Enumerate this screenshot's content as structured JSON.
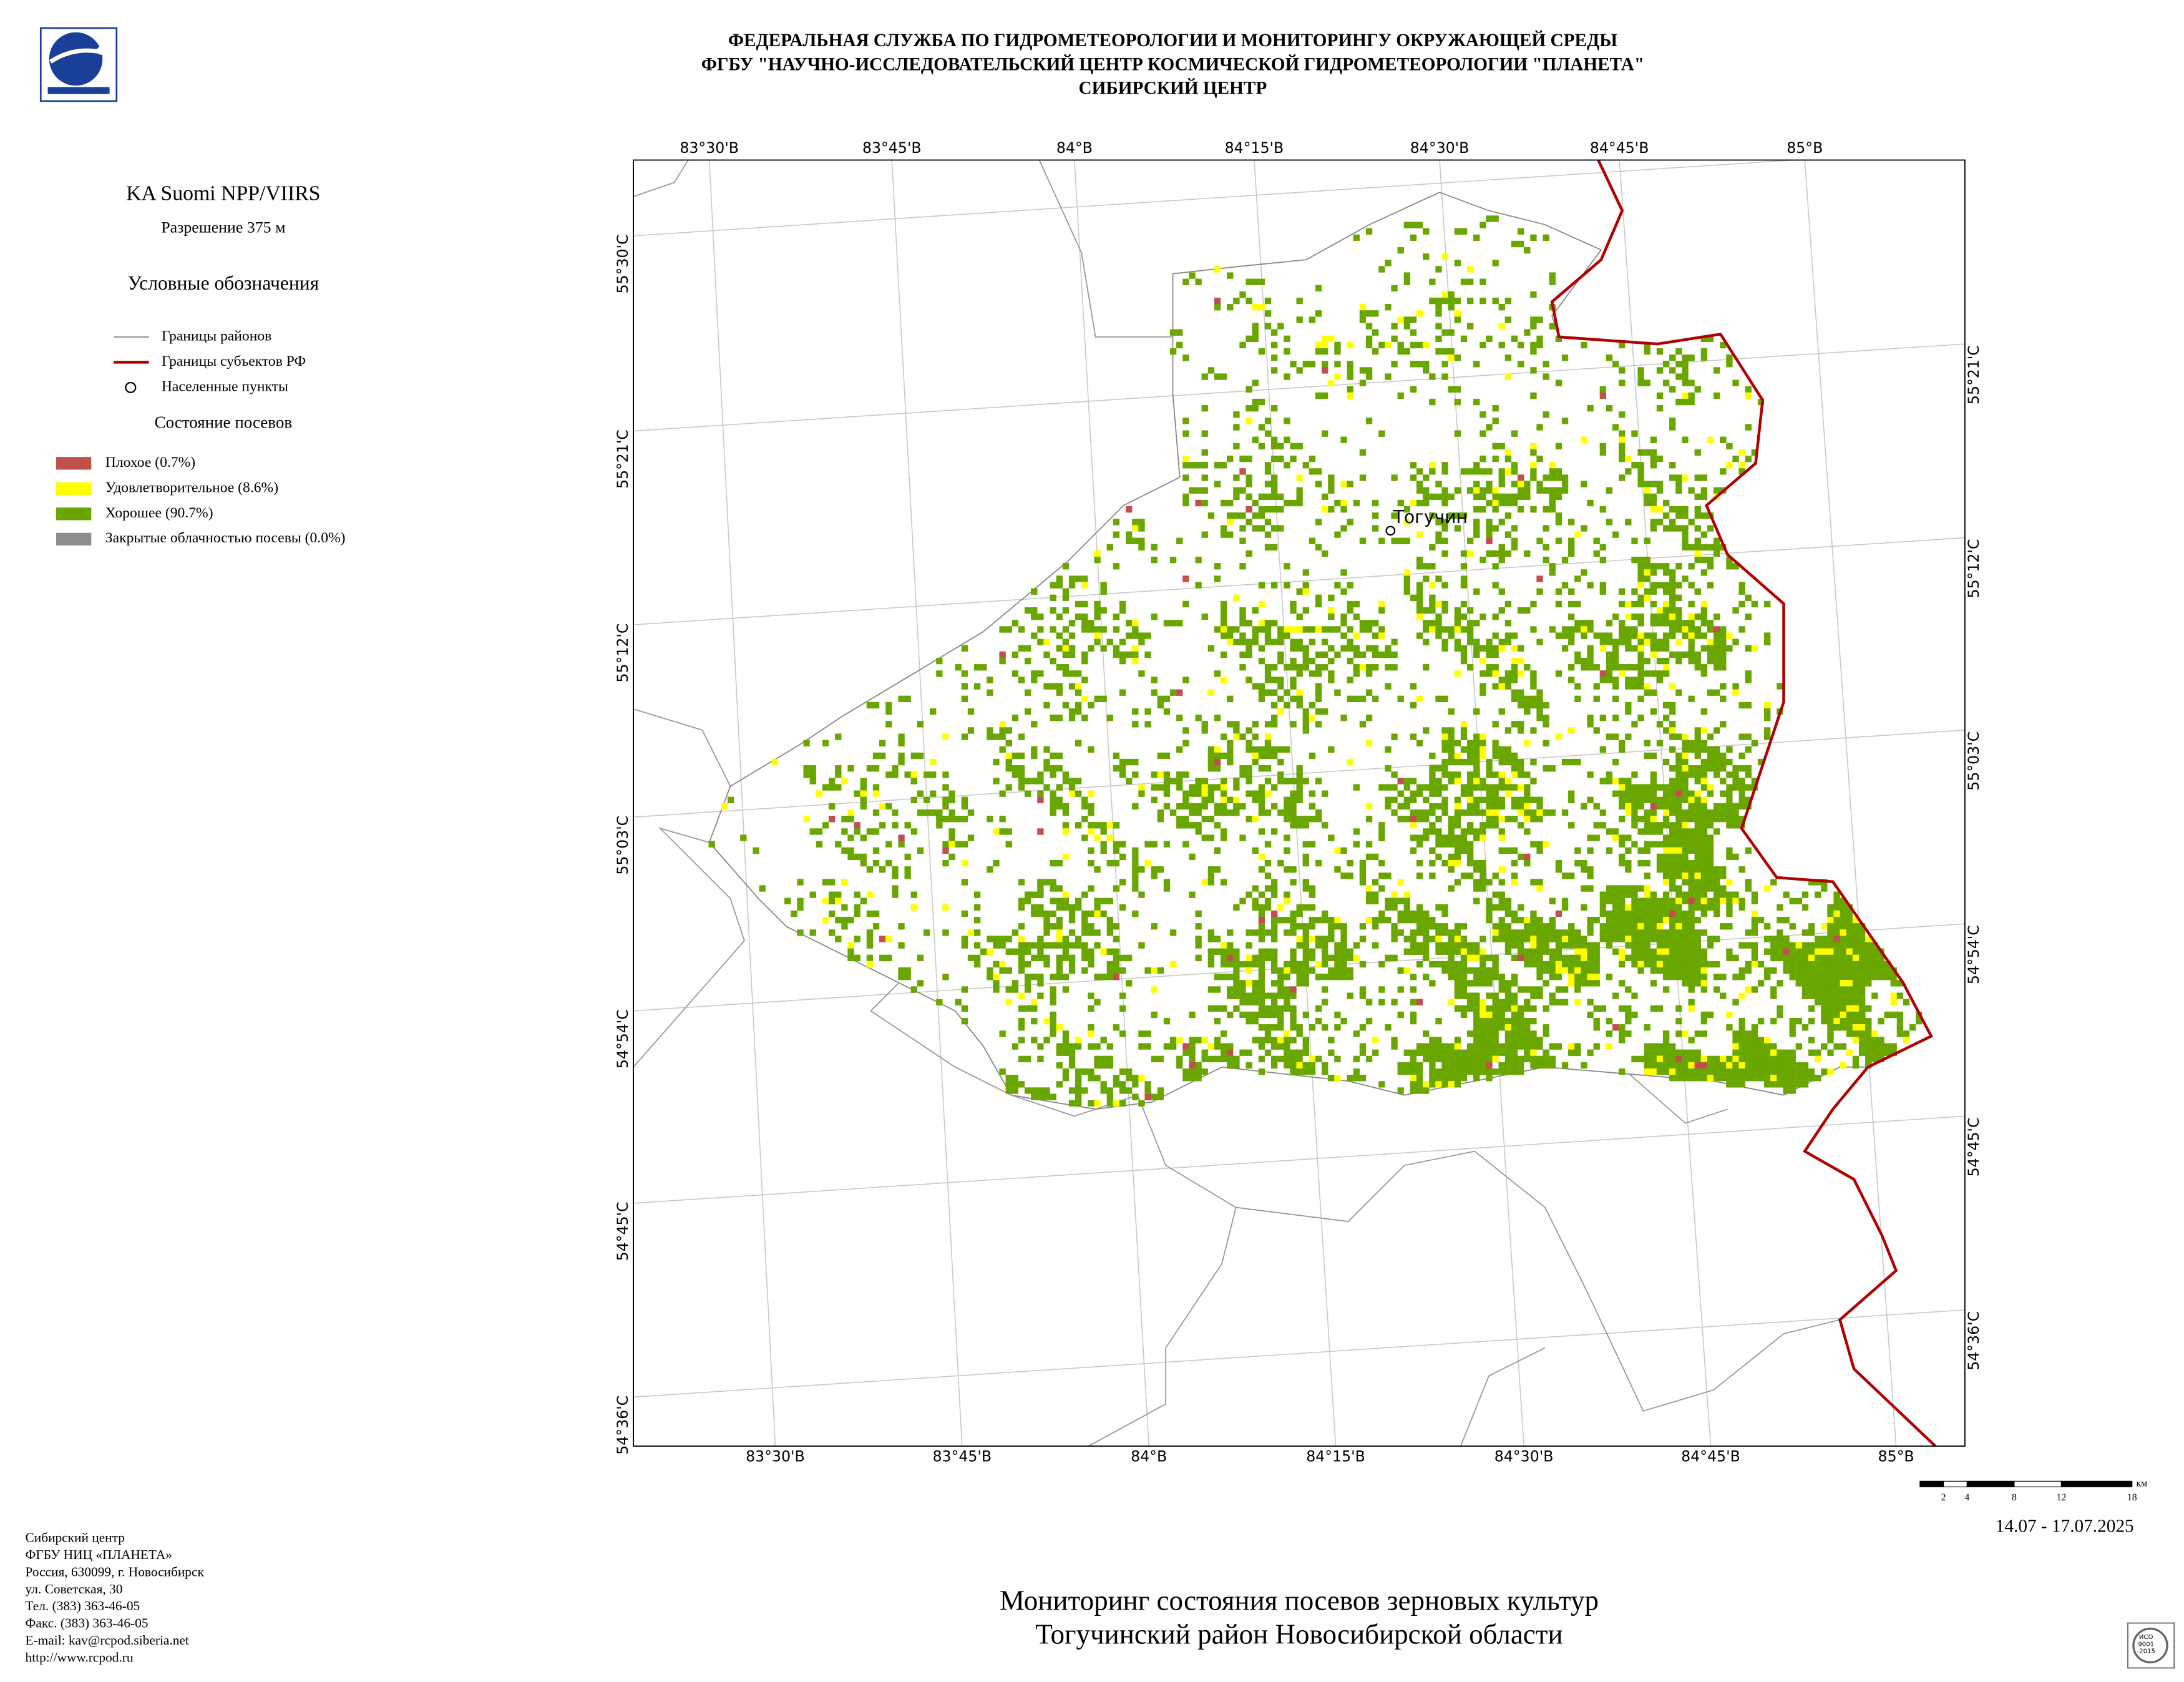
{
  "header": {
    "lines": [
      "ФЕДЕРАЛЬНАЯ СЛУЖБА ПО ГИДРОМЕТЕОРОЛОГИИ И МОНИТОРИНГУ ОКРУЖАЮЩЕЙ СРЕДЫ",
      "ФГБУ \"НАУЧНО-ИССЛЕДОВАТЕЛЬСКИЙ ЦЕНТР КОСМИЧЕСКОЙ ГИДРОМЕТЕОРОЛОГИИ \"ПЛАНЕТА\"",
      "СИБИРСКИЙ ЦЕНТР"
    ]
  },
  "sidebar": {
    "satellite": "KA Suomi NPP/VIIRS",
    "resolution": "Разрешение 375 м",
    "legend_title": "Условные обозначения",
    "boundaries": [
      {
        "label": "Границы районов",
        "color": "#999999"
      },
      {
        "label": "Границы субъектов РФ",
        "color": "#b00000"
      },
      {
        "label": "Населенные пункты"
      }
    ],
    "crops_title": "Состояние посевов",
    "crops": [
      {
        "label": "Плохое (0.7%)",
        "color": "#c0504d"
      },
      {
        "label": "Удовлетворительное (8.6%)",
        "color": "#ffff00"
      },
      {
        "label": "Хорошее (90.7%)",
        "color": "#6aa600"
      },
      {
        "label": "Закрытые облачностью посевы (0.0%)",
        "color": "#8c8c8c"
      }
    ]
  },
  "map": {
    "top_labels": [
      "83°30'В",
      "83°45'В",
      "84°В",
      "84°15'В",
      "84°30'В",
      "84°45'В",
      "85°В"
    ],
    "bottom_labels": [
      "83°30'В",
      "83°45'В",
      "84°В",
      "84°15'В",
      "84°30'В",
      "84°45'В",
      "85°В"
    ],
    "left_labels": [
      "55°30'С",
      "55°21'С",
      "55°12'С",
      "55°03'С",
      "54°54'С",
      "54°45'С",
      "54°36'С"
    ],
    "right_labels": [
      "55°21'С",
      "55°12'С",
      "55°03'С",
      "54°54'С",
      "54°45'С",
      "54°36'С"
    ],
    "settlement": "Тогучин"
  },
  "scale": {
    "ticks": [
      2,
      4,
      8,
      12,
      18
    ],
    "unit": "км"
  },
  "date": "14.07 - 17.07.2025",
  "footer": {
    "lines": [
      "Сибирский центр",
      "ФГБУ НИЦ «ПЛАНЕТА»",
      "Россия, 630099, г. Новосибирск",
      "ул. Советская, 30",
      "Тел. (383) 363-46-05",
      "Факс. (383) 363-46-05",
      "E-mail: kav@rcpod.siberia.net",
      "http://www.rcpod.ru"
    ]
  },
  "title": {
    "lines": [
      "Мониторинг состояния посевов зерновых культур",
      "Тогучинский район Новосибирской области"
    ]
  },
  "badge": {
    "lines": [
      "ИСО",
      "9001",
      "-2015"
    ]
  }
}
